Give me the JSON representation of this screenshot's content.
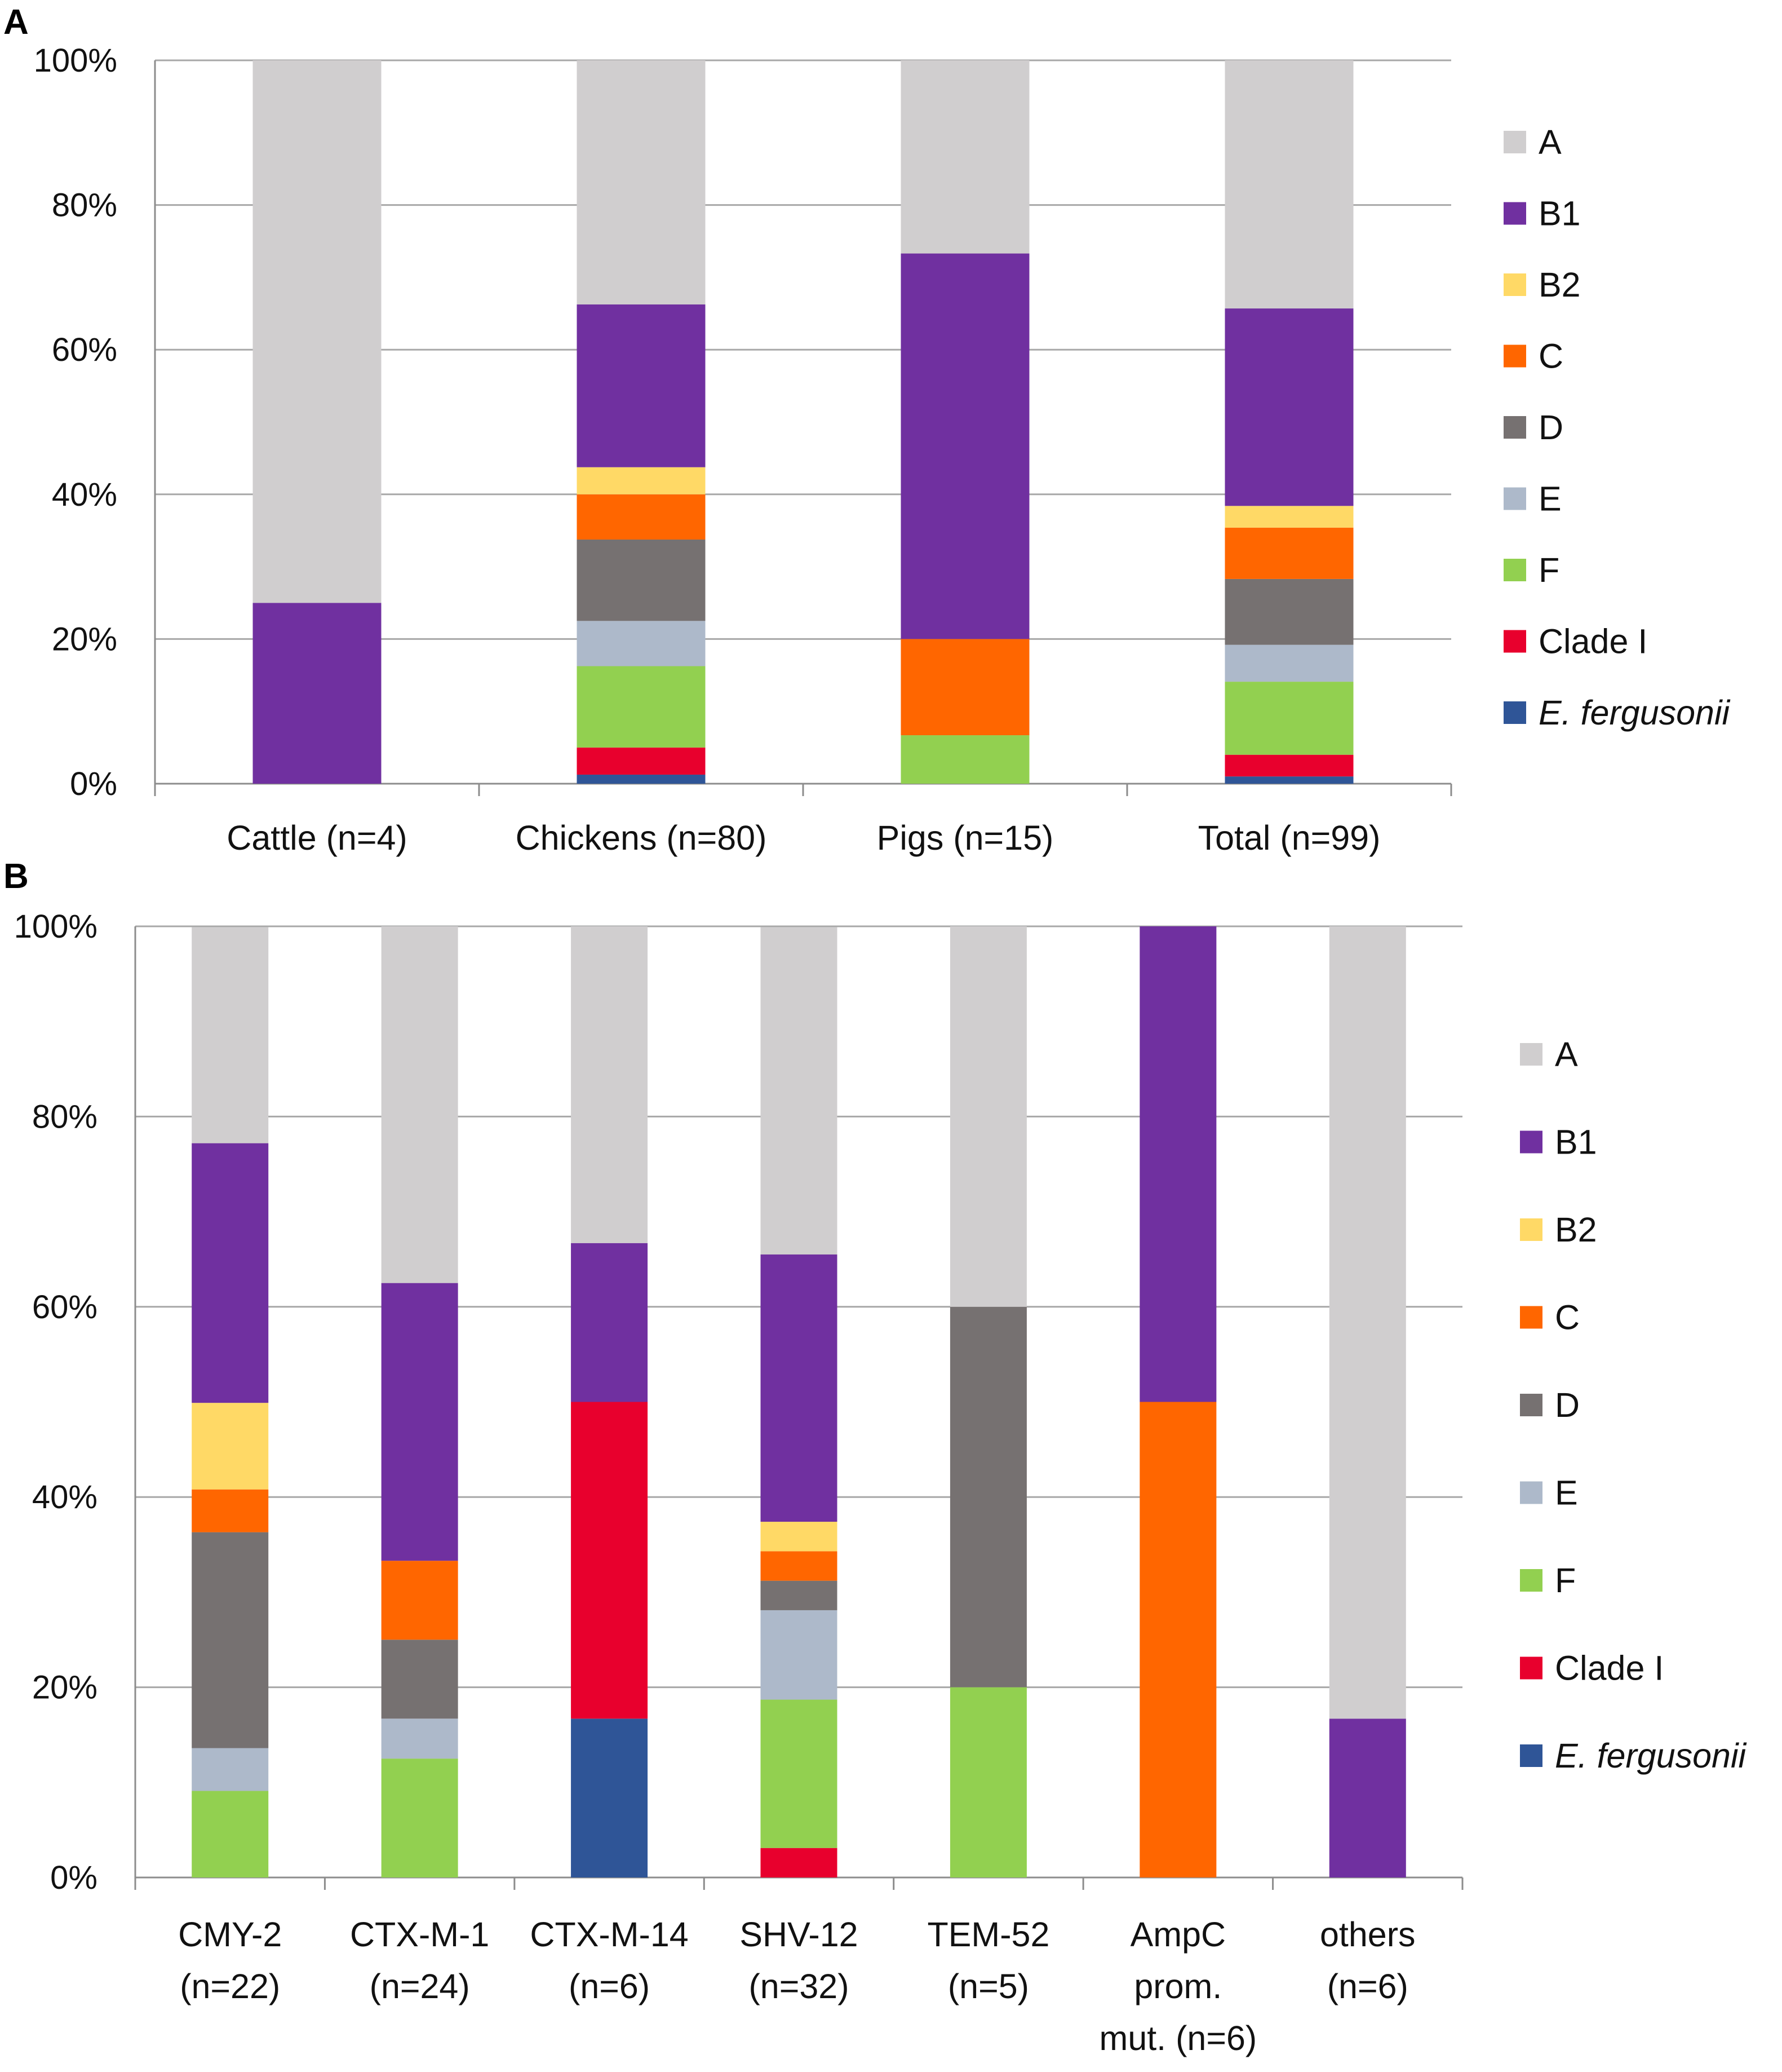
{
  "colors": {
    "A": "#d0cecf",
    "B1": "#7030a0",
    "B2": "#ffd966",
    "C": "#ff6600",
    "D": "#767171",
    "E": "#adb9ca",
    "F": "#92d050",
    "Clade I": "#e8002d",
    "E. fergusonii": "#2f5597",
    "legend_A_text": "#1f1f9f"
  },
  "legend": [
    {
      "key": "A",
      "label": "A",
      "italic": false
    },
    {
      "key": "B1",
      "label": "B1",
      "italic": false
    },
    {
      "key": "B2",
      "label": "B2",
      "italic": false
    },
    {
      "key": "C",
      "label": "C",
      "italic": false
    },
    {
      "key": "D",
      "label": "D",
      "italic": false
    },
    {
      "key": "E",
      "label": "E",
      "italic": false
    },
    {
      "key": "F",
      "label": "F",
      "italic": false
    },
    {
      "key": "Clade I",
      "label": "Clade I",
      "italic": false
    },
    {
      "key": "E. fergusonii",
      "label": "E. fergusonii",
      "italic": true
    }
  ],
  "chart_data": [
    {
      "panel_label": "A",
      "type": "bar",
      "stacked": true,
      "ylim": [
        0,
        100
      ],
      "y_ticks": [
        "0%",
        "20%",
        "40%",
        "60%",
        "80%",
        "100%"
      ],
      "legend_position": "right",
      "categories": [
        [
          "Cattle (n=4)"
        ],
        [
          "Chickens (n=80)"
        ],
        [
          "Pigs (n=15)"
        ],
        [
          "Total (n=99)"
        ]
      ],
      "series": [
        {
          "name": "E. fergusonii",
          "values": [
            0,
            1.25,
            0,
            1.0
          ]
        },
        {
          "name": "Clade I",
          "values": [
            0,
            3.75,
            0,
            3.0
          ]
        },
        {
          "name": "F",
          "values": [
            0,
            11.25,
            6.7,
            10.1
          ]
        },
        {
          "name": "E",
          "values": [
            0,
            6.25,
            0,
            5.1
          ]
        },
        {
          "name": "D",
          "values": [
            0,
            11.25,
            0,
            9.1
          ]
        },
        {
          "name": "C",
          "values": [
            0,
            6.25,
            13.3,
            7.1
          ]
        },
        {
          "name": "B2",
          "values": [
            0,
            3.75,
            0,
            3.0
          ]
        },
        {
          "name": "B1",
          "values": [
            25,
            22.5,
            53.3,
            27.3
          ]
        },
        {
          "name": "A",
          "values": [
            75,
            33.75,
            26.7,
            34.3
          ]
        }
      ]
    },
    {
      "panel_label": "B",
      "type": "bar",
      "stacked": true,
      "ylim": [
        0,
        100
      ],
      "y_ticks": [
        "0%",
        "20%",
        "40%",
        "60%",
        "80%",
        "100%"
      ],
      "legend_position": "right",
      "categories": [
        [
          "CMY-2",
          "(n=22)"
        ],
        [
          "CTX-M-1",
          "(n=24)"
        ],
        [
          "CTX-M-14",
          "(n=6)"
        ],
        [
          "SHV-12",
          "(n=32)"
        ],
        [
          "TEM-52",
          "(n=5)"
        ],
        [
          "AmpC",
          "prom.",
          "mut. (n=6)"
        ],
        [
          "others",
          "(n=6)"
        ]
      ],
      "series": [
        {
          "name": "E. fergusonii",
          "values": [
            0,
            0,
            16.7,
            0,
            0,
            0,
            0
          ]
        },
        {
          "name": "Clade I",
          "values": [
            0,
            0,
            33.3,
            3.1,
            0,
            0,
            0
          ]
        },
        {
          "name": "F",
          "values": [
            9.1,
            12.5,
            0,
            15.6,
            20,
            0,
            0
          ]
        },
        {
          "name": "E",
          "values": [
            4.5,
            4.2,
            0,
            9.4,
            0,
            0,
            0
          ]
        },
        {
          "name": "D",
          "values": [
            22.7,
            8.3,
            0,
            3.1,
            40,
            0,
            0
          ]
        },
        {
          "name": "C",
          "values": [
            4.5,
            8.3,
            0,
            3.1,
            0,
            50,
            0
          ]
        },
        {
          "name": "B2",
          "values": [
            9.1,
            0,
            0,
            3.1,
            0,
            0,
            0
          ]
        },
        {
          "name": "B1",
          "values": [
            27.3,
            29.2,
            16.7,
            28.1,
            0,
            50,
            16.7
          ]
        },
        {
          "name": "A",
          "values": [
            22.7,
            37.5,
            33.3,
            34.4,
            40,
            0,
            83.3
          ]
        }
      ]
    }
  ]
}
